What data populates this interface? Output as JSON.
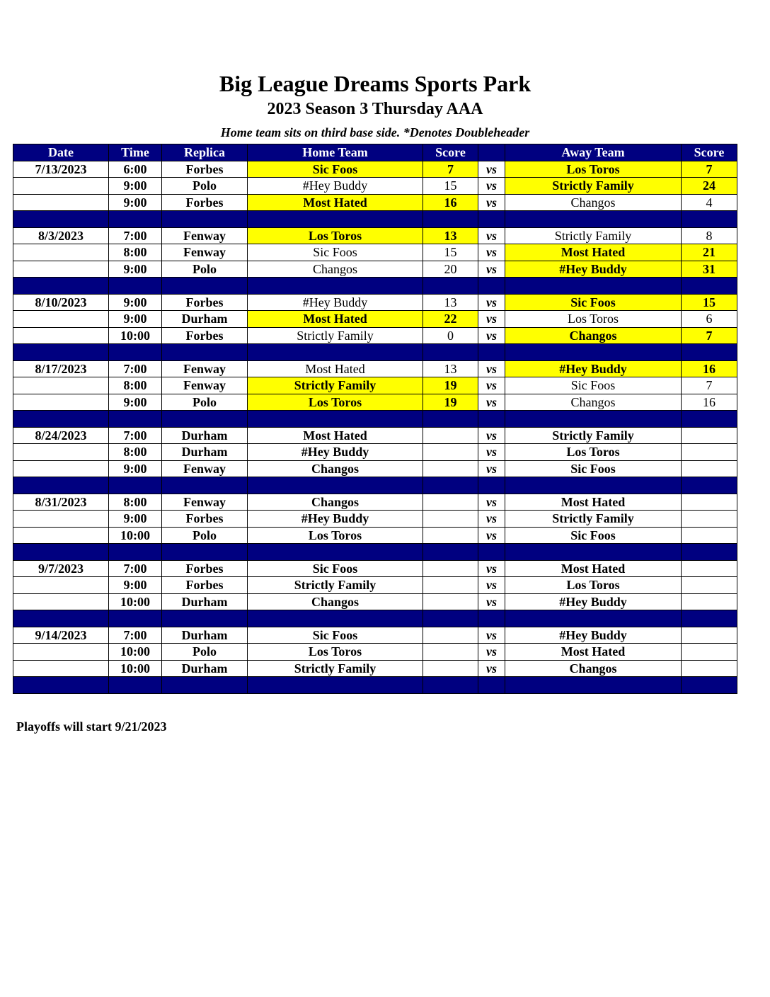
{
  "title": "Big League Dreams Sports Park",
  "subtitle": "2023 Season 3 Thursday AAA",
  "note": "Home team sits on third base side.  *Denotes Doubleheader",
  "colors": {
    "header": "#000080",
    "winner_highlight": "#ffff00"
  },
  "headers": [
    "Date",
    "Time",
    "Replica",
    "Home Team",
    "Score",
    "",
    "Away Team",
    "Score"
  ],
  "vs_label": "vs",
  "weeks": [
    {
      "date": "7/13/2023",
      "games": [
        {
          "time": "6:00",
          "field": "Forbes",
          "home": "Sic Foos",
          "home_score": "7",
          "away": "Los Toros",
          "away_score": "7",
          "home_hl": true,
          "away_hl": true
        },
        {
          "time": "9:00",
          "field": "Polo",
          "home": "#Hey Buddy",
          "home_score": "15",
          "away": "Strictly Family",
          "away_score": "24",
          "home_hl": false,
          "away_hl": true
        },
        {
          "time": "9:00",
          "field": "Forbes",
          "home": "Most Hated",
          "home_score": "16",
          "away": "Changos",
          "away_score": "4",
          "home_hl": true,
          "away_hl": false
        }
      ]
    },
    {
      "date": "8/3/2023",
      "games": [
        {
          "time": "7:00",
          "field": "Fenway",
          "home": "Los Toros",
          "home_score": "13",
          "away": "Strictly Family",
          "away_score": "8",
          "home_hl": true,
          "away_hl": false
        },
        {
          "time": "8:00",
          "field": "Fenway",
          "home": "Sic Foos",
          "home_score": "15",
          "away": "Most Hated",
          "away_score": "21",
          "home_hl": false,
          "away_hl": true
        },
        {
          "time": "9:00",
          "field": "Polo",
          "home": "Changos",
          "home_score": "20",
          "away": "#Hey Buddy",
          "away_score": "31",
          "home_hl": false,
          "away_hl": true
        }
      ]
    },
    {
      "date": "8/10/2023",
      "games": [
        {
          "time": "9:00",
          "field": "Forbes",
          "home": "#Hey Buddy",
          "home_score": "13",
          "away": "Sic Foos",
          "away_score": "15",
          "home_hl": false,
          "away_hl": true
        },
        {
          "time": "9:00",
          "field": "Durham",
          "home": "Most Hated",
          "home_score": "22",
          "away": "Los Toros",
          "away_score": "6",
          "home_hl": true,
          "away_hl": false
        },
        {
          "time": "10:00",
          "field": "Forbes",
          "home": "Strictly Family",
          "home_score": "0",
          "away": "Changos",
          "away_score": "7",
          "home_hl": false,
          "away_hl": true
        }
      ]
    },
    {
      "date": "8/17/2023",
      "games": [
        {
          "time": "7:00",
          "field": "Fenway",
          "home": "Most Hated",
          "home_score": "13",
          "away": "#Hey Buddy",
          "away_score": "16",
          "home_hl": false,
          "away_hl": true
        },
        {
          "time": "8:00",
          "field": "Fenway",
          "home": "Strictly Family",
          "home_score": "19",
          "away": "Sic Foos",
          "away_score": "7",
          "home_hl": true,
          "away_hl": false
        },
        {
          "time": "9:00",
          "field": "Polo",
          "home": "Los Toros",
          "home_score": "19",
          "away": "Changos",
          "away_score": "16",
          "home_hl": true,
          "away_hl": false
        }
      ]
    },
    {
      "date": "8/24/2023",
      "games": [
        {
          "time": "7:00",
          "field": "Durham",
          "home": "Most Hated",
          "home_score": "",
          "away": "Strictly Family",
          "away_score": ""
        },
        {
          "time": "8:00",
          "field": "Durham",
          "home": "#Hey Buddy",
          "home_score": "",
          "away": "Los Toros",
          "away_score": ""
        },
        {
          "time": "9:00",
          "field": "Fenway",
          "home": "Changos",
          "home_score": "",
          "away": "Sic Foos",
          "away_score": ""
        }
      ]
    },
    {
      "date": "8/31/2023",
      "games": [
        {
          "time": "8:00",
          "field": "Fenway",
          "home": "Changos",
          "home_score": "",
          "away": "Most Hated",
          "away_score": ""
        },
        {
          "time": "9:00",
          "field": "Forbes",
          "home": "#Hey Buddy",
          "home_score": "",
          "away": "Strictly Family",
          "away_score": ""
        },
        {
          "time": "10:00",
          "field": "Polo",
          "home": "Los Toros",
          "home_score": "",
          "away": "Sic Foos",
          "away_score": ""
        }
      ]
    },
    {
      "date": "9/7/2023",
      "games": [
        {
          "time": "7:00",
          "field": "Forbes",
          "home": "Sic Foos",
          "home_score": "",
          "away": "Most Hated",
          "away_score": ""
        },
        {
          "time": "9:00",
          "field": "Forbes",
          "home": "Strictly Family",
          "home_score": "",
          "away": "Los Toros",
          "away_score": ""
        },
        {
          "time": "10:00",
          "field": "Durham",
          "home": "Changos",
          "home_score": "",
          "away": "#Hey Buddy",
          "away_score": ""
        }
      ]
    },
    {
      "date": "9/14/2023",
      "games": [
        {
          "time": "7:00",
          "field": "Durham",
          "home": "Sic Foos",
          "home_score": "",
          "away": "#Hey Buddy",
          "away_score": ""
        },
        {
          "time": "10:00",
          "field": "Polo",
          "home": "Los Toros",
          "home_score": "",
          "away": "Most Hated",
          "away_score": ""
        },
        {
          "time": "10:00",
          "field": "Durham",
          "home": "Strictly Family",
          "home_score": "",
          "away": "Changos",
          "away_score": ""
        }
      ]
    }
  ],
  "footer": "Playoffs will start 9/21/2023"
}
